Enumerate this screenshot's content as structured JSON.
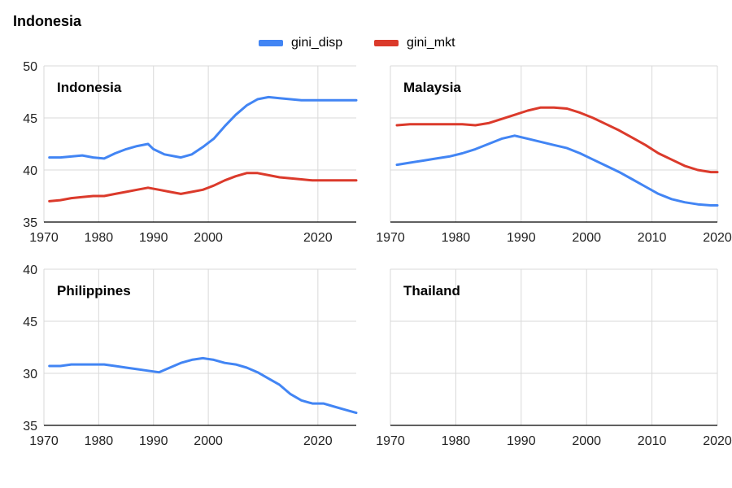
{
  "title": "Indonesia",
  "colors": {
    "gini_disp": "#4285f4",
    "gini_mkt": "#db3a2b",
    "grid": "#d9d9d9",
    "axis": "#000000"
  },
  "legend": [
    {
      "name": "gini_disp",
      "color": "#4285f4"
    },
    {
      "name": "gini_mkt",
      "color": "#db3a2b"
    }
  ],
  "chart_data": [
    {
      "type": "line",
      "title": "Indonesia",
      "xlim": [
        1970,
        2027
      ],
      "ylim": [
        35,
        50
      ],
      "xticks": [
        1970,
        1980,
        1990,
        2000,
        2020
      ],
      "yticks": [
        35,
        40,
        45,
        50
      ],
      "yticklabels": [
        "35",
        "40",
        "45",
        "50"
      ],
      "series": [
        {
          "name": "gini_disp",
          "color": "#4285f4",
          "x": [
            1971,
            1973,
            1975,
            1977,
            1979,
            1981,
            1983,
            1985,
            1987,
            1989,
            1990,
            1992,
            1994,
            1995,
            1997,
            1999,
            2001,
            2003,
            2005,
            2007,
            2009,
            2011,
            2013,
            2015,
            2017,
            2019,
            2021,
            2023,
            2025,
            2027
          ],
          "y": [
            41.2,
            41.2,
            41.3,
            41.4,
            41.2,
            41.1,
            41.6,
            42.0,
            42.3,
            42.5,
            42.0,
            41.5,
            41.3,
            41.2,
            41.5,
            42.2,
            43.0,
            44.2,
            45.3,
            46.2,
            46.8,
            47.0,
            46.9,
            46.8,
            46.7,
            46.7,
            46.7,
            46.7,
            46.7,
            46.7
          ],
          "y_note": ""
        },
        {
          "name": "gini_mkt",
          "color": "#db3a2b",
          "x": [
            1971,
            1973,
            1975,
            1977,
            1979,
            1981,
            1983,
            1985,
            1987,
            1989,
            1991,
            1993,
            1995,
            1997,
            1999,
            2001,
            2003,
            2005,
            2007,
            2009,
            2011,
            2013,
            2015,
            2017,
            2019,
            2021,
            2023,
            2025,
            2027
          ],
          "y": [
            37.0,
            37.1,
            37.3,
            37.4,
            37.5,
            37.5,
            37.7,
            37.9,
            38.1,
            38.3,
            38.1,
            37.9,
            37.7,
            37.9,
            38.1,
            38.5,
            39.0,
            39.4,
            39.7,
            39.7,
            39.5,
            39.3,
            39.2,
            39.1,
            39.0,
            39.0,
            39.0,
            39.0,
            39.0
          ]
        }
      ]
    },
    {
      "type": "line",
      "title": "Malaysia",
      "xlim": [
        1970,
        2020
      ],
      "ylim": [
        35,
        50
      ],
      "xticks": [
        1970,
        1980,
        1990,
        2000,
        2010,
        2020
      ],
      "yticks": [
        35,
        40,
        45,
        50
      ],
      "yticklabels": [
        "",
        "",
        "",
        ""
      ],
      "series": [
        {
          "name": "gini_disp",
          "color": "#4285f4",
          "x": [
            1971,
            1973,
            1975,
            1977,
            1979,
            1981,
            1983,
            1985,
            1987,
            1989,
            1991,
            1993,
            1995,
            1997,
            1999,
            2001,
            2003,
            2005,
            2007,
            2009,
            2011,
            2013,
            2015,
            2017,
            2019,
            2020
          ],
          "y": [
            40.5,
            40.7,
            40.9,
            41.1,
            41.3,
            41.6,
            42.0,
            42.5,
            43.0,
            43.3,
            43.0,
            42.7,
            42.4,
            42.1,
            41.6,
            41.0,
            40.4,
            39.8,
            39.1,
            38.4,
            37.7,
            37.2,
            36.9,
            36.7,
            36.6,
            36.6
          ]
        },
        {
          "name": "gini_mkt",
          "color": "#db3a2b",
          "x": [
            1971,
            1973,
            1975,
            1977,
            1979,
            1981,
            1983,
            1985,
            1987,
            1989,
            1991,
            1993,
            1995,
            1997,
            1999,
            2001,
            2003,
            2005,
            2007,
            2009,
            2011,
            2013,
            2015,
            2017,
            2019,
            2020
          ],
          "y": [
            44.3,
            44.4,
            44.4,
            44.4,
            44.4,
            44.4,
            44.3,
            44.5,
            44.9,
            45.3,
            45.7,
            46.0,
            46.0,
            45.9,
            45.5,
            45.0,
            44.4,
            43.8,
            43.1,
            42.4,
            41.6,
            41.0,
            40.4,
            40.0,
            39.8,
            39.8
          ]
        }
      ]
    },
    {
      "type": "line",
      "title": "Philippines",
      "xlim": [
        1970,
        2027
      ],
      "ylim": [
        35,
        40
      ],
      "xticks": [
        1970,
        1980,
        1990,
        2000,
        2020
      ],
      "yticks": [
        35,
        30,
        45,
        40
      ],
      "yticklabels": [
        "35",
        "30",
        "45",
        "40"
      ],
      "series": [
        {
          "name": "gini_disp",
          "color": "#4285f4",
          "x": [
            1971,
            1973,
            1975,
            1977,
            1979,
            1981,
            1983,
            1985,
            1987,
            1989,
            1991,
            1993,
            1995,
            1997,
            1999,
            2001,
            2003,
            2005,
            2007,
            2009,
            2011,
            2013,
            2015,
            2017,
            2019,
            2021,
            2023,
            2025,
            2027
          ],
          "y": [
            36.9,
            36.9,
            36.95,
            36.95,
            36.95,
            36.95,
            36.9,
            36.85,
            36.8,
            36.75,
            36.7,
            36.85,
            37.0,
            37.1,
            37.15,
            37.1,
            37.0,
            36.95,
            36.85,
            36.7,
            36.5,
            36.3,
            36.0,
            35.8,
            35.7,
            35.7,
            35.6,
            35.5,
            35.4
          ]
        }
      ]
    },
    {
      "type": "line",
      "title": "Thailand",
      "xlim": [
        1970,
        2020
      ],
      "ylim": [
        35,
        40
      ],
      "xticks": [
        1970,
        1980,
        1990,
        2000,
        2010,
        2020
      ],
      "yticks": [
        35,
        30,
        45,
        40
      ],
      "yticklabels": [
        "",
        "",
        "",
        ""
      ],
      "series": [
        {
          "name": "gini_disp",
          "color": "#4285f4"
        },
        {
          "name": "gini_mkt",
          "color": "#db3a2b"
        }
      ]
    }
  ]
}
